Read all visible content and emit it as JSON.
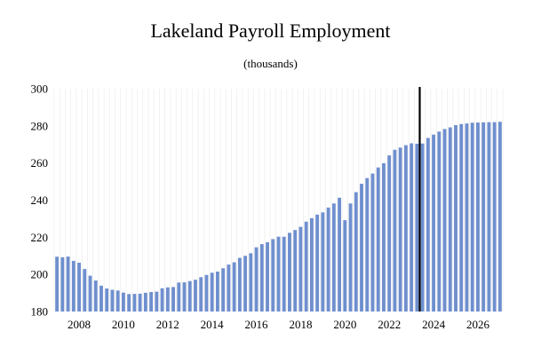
{
  "chart_data": {
    "type": "bar",
    "title": "Lakeland Payroll Employment",
    "subtitle": "(thousands)",
    "xlabel": "",
    "ylabel": "",
    "ylim": [
      180,
      300
    ],
    "yticks": [
      180,
      200,
      220,
      240,
      260,
      280,
      300
    ],
    "xticks": [
      "2008",
      "2010",
      "2012",
      "2014",
      "2016",
      "2018",
      "2020",
      "2022",
      "2024",
      "2026"
    ],
    "grid": "vertical",
    "bar_color": "#6f8fce",
    "marker_color": "#000000",
    "forecast_marker_after": "2023Q2",
    "x": [
      "2007Q1",
      "2007Q2",
      "2007Q3",
      "2007Q4",
      "2008Q1",
      "2008Q2",
      "2008Q3",
      "2008Q4",
      "2009Q1",
      "2009Q2",
      "2009Q3",
      "2009Q4",
      "2010Q1",
      "2010Q2",
      "2010Q3",
      "2010Q4",
      "2011Q1",
      "2011Q2",
      "2011Q3",
      "2011Q4",
      "2012Q1",
      "2012Q2",
      "2012Q3",
      "2012Q4",
      "2013Q1",
      "2013Q2",
      "2013Q3",
      "2013Q4",
      "2014Q1",
      "2014Q2",
      "2014Q3",
      "2014Q4",
      "2015Q1",
      "2015Q2",
      "2015Q3",
      "2015Q4",
      "2016Q1",
      "2016Q2",
      "2016Q3",
      "2016Q4",
      "2017Q1",
      "2017Q2",
      "2017Q3",
      "2017Q4",
      "2018Q1",
      "2018Q2",
      "2018Q3",
      "2018Q4",
      "2019Q1",
      "2019Q2",
      "2019Q3",
      "2019Q4",
      "2020Q1",
      "2020Q2",
      "2020Q3",
      "2020Q4",
      "2021Q1",
      "2021Q2",
      "2021Q3",
      "2021Q4",
      "2022Q1",
      "2022Q2",
      "2022Q3",
      "2022Q4",
      "2023Q1",
      "2023Q2",
      "2023Q3",
      "2023Q4",
      "2024Q1",
      "2024Q2",
      "2024Q3",
      "2024Q4",
      "2025Q1",
      "2025Q2",
      "2025Q3",
      "2025Q4",
      "2026Q1",
      "2026Q2",
      "2026Q3",
      "2026Q4",
      "2027Q1"
    ],
    "values": [
      209.5,
      209.2,
      209.6,
      207.3,
      206.3,
      202.9,
      199.3,
      196.7,
      193.9,
      192.4,
      191.7,
      191.3,
      190.2,
      189.4,
      189.5,
      189.6,
      190.1,
      190.5,
      190.7,
      192.5,
      193.0,
      193.2,
      195.6,
      195.7,
      196.4,
      197.1,
      198.5,
      199.7,
      200.9,
      201.5,
      203.3,
      205.3,
      206.5,
      208.9,
      210.0,
      211.4,
      214.6,
      216.3,
      217.3,
      219.0,
      220.3,
      220.3,
      222.4,
      223.9,
      225.6,
      228.4,
      230.3,
      232.2,
      233.4,
      236.0,
      238.2,
      241.3,
      229.2,
      238.2,
      244.3,
      248.8,
      251.9,
      254.3,
      257.6,
      259.9,
      264.1,
      267.1,
      268.3,
      269.6,
      270.6,
      270.4,
      270.5,
      273.5,
      275.3,
      276.9,
      278.3,
      279.2,
      280.4,
      281.0,
      281.3,
      281.7,
      281.8,
      281.9,
      282.0,
      282.0,
      282.2
    ]
  }
}
